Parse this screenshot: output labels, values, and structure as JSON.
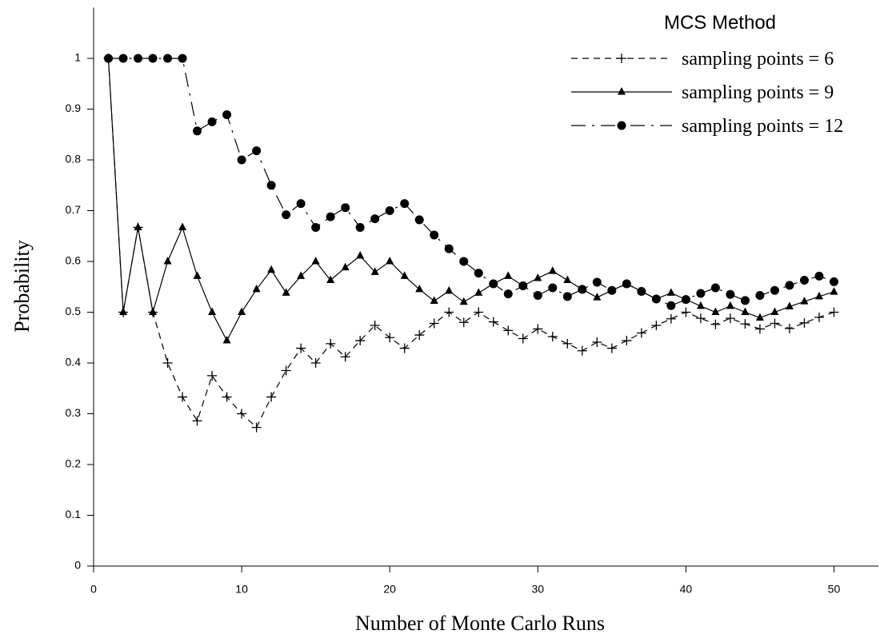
{
  "chart_data": {
    "type": "line",
    "x_label": "Number of Monte Carlo Runs",
    "y_label": "Probability",
    "legend_title": "MCS Method",
    "legend_position": "upper right",
    "xlim": [
      0,
      53
    ],
    "xticks": [
      0,
      10,
      20,
      30,
      40,
      50
    ],
    "ylim": [
      0,
      1.1
    ],
    "yticks": [
      0,
      0.1,
      0.2,
      0.3,
      0.4,
      0.5,
      0.6,
      0.7,
      0.8,
      0.9,
      1
    ],
    "x": [
      1,
      2,
      3,
      4,
      5,
      6,
      7,
      8,
      9,
      10,
      11,
      12,
      13,
      14,
      15,
      16,
      17,
      18,
      19,
      20,
      21,
      22,
      23,
      24,
      25,
      26,
      27,
      28,
      29,
      30,
      31,
      32,
      33,
      34,
      35,
      36,
      37,
      38,
      39,
      40,
      41,
      42,
      43,
      44,
      45,
      46,
      47,
      48,
      49,
      50
    ],
    "series": [
      {
        "name": "sampling points = 6",
        "color": "#000000",
        "dash": "8,6",
        "marker": "plus",
        "values": [
          1,
          0.5,
          0.667,
          0.5,
          0.4,
          0.333,
          0.286,
          0.375,
          0.333,
          0.3,
          0.273,
          0.333,
          0.385,
          0.429,
          0.4,
          0.438,
          0.412,
          0.444,
          0.474,
          0.45,
          0.429,
          0.455,
          0.478,
          0.5,
          0.48,
          0.5,
          0.481,
          0.464,
          0.448,
          0.467,
          0.452,
          0.438,
          0.424,
          0.441,
          0.429,
          0.444,
          0.459,
          0.474,
          0.487,
          0.5,
          0.488,
          0.476,
          0.488,
          0.477,
          0.467,
          0.478,
          0.468,
          0.479,
          0.49,
          0.5
        ]
      },
      {
        "name": "sampling points = 9",
        "color": "#000000",
        "dash": "none",
        "marker": "triangle",
        "values": [
          1,
          0.5,
          0.667,
          0.5,
          0.6,
          0.667,
          0.571,
          0.5,
          0.444,
          0.5,
          0.545,
          0.583,
          0.538,
          0.571,
          0.6,
          0.563,
          0.588,
          0.611,
          0.579,
          0.6,
          0.571,
          0.545,
          0.522,
          0.542,
          0.52,
          0.538,
          0.556,
          0.571,
          0.552,
          0.567,
          0.581,
          0.563,
          0.545,
          0.529,
          0.543,
          0.556,
          0.541,
          0.526,
          0.538,
          0.525,
          0.512,
          0.5,
          0.512,
          0.5,
          0.489,
          0.5,
          0.511,
          0.521,
          0.531,
          0.54
        ]
      },
      {
        "name": "sampling points = 12",
        "color": "#000000",
        "dash": "18,8,3,8",
        "marker": "circle",
        "values": [
          1,
          1,
          1,
          1,
          1,
          1,
          0.857,
          0.875,
          0.889,
          0.8,
          0.818,
          0.75,
          0.692,
          0.714,
          0.667,
          0.688,
          0.706,
          0.667,
          0.684,
          0.7,
          0.714,
          0.682,
          0.652,
          0.625,
          0.6,
          0.577,
          0.556,
          0.536,
          0.552,
          0.533,
          0.548,
          0.531,
          0.545,
          0.559,
          0.543,
          0.556,
          0.541,
          0.526,
          0.513,
          0.525,
          0.537,
          0.548,
          0.535,
          0.523,
          0.533,
          0.543,
          0.553,
          0.563,
          0.571,
          0.56
        ]
      }
    ]
  }
}
